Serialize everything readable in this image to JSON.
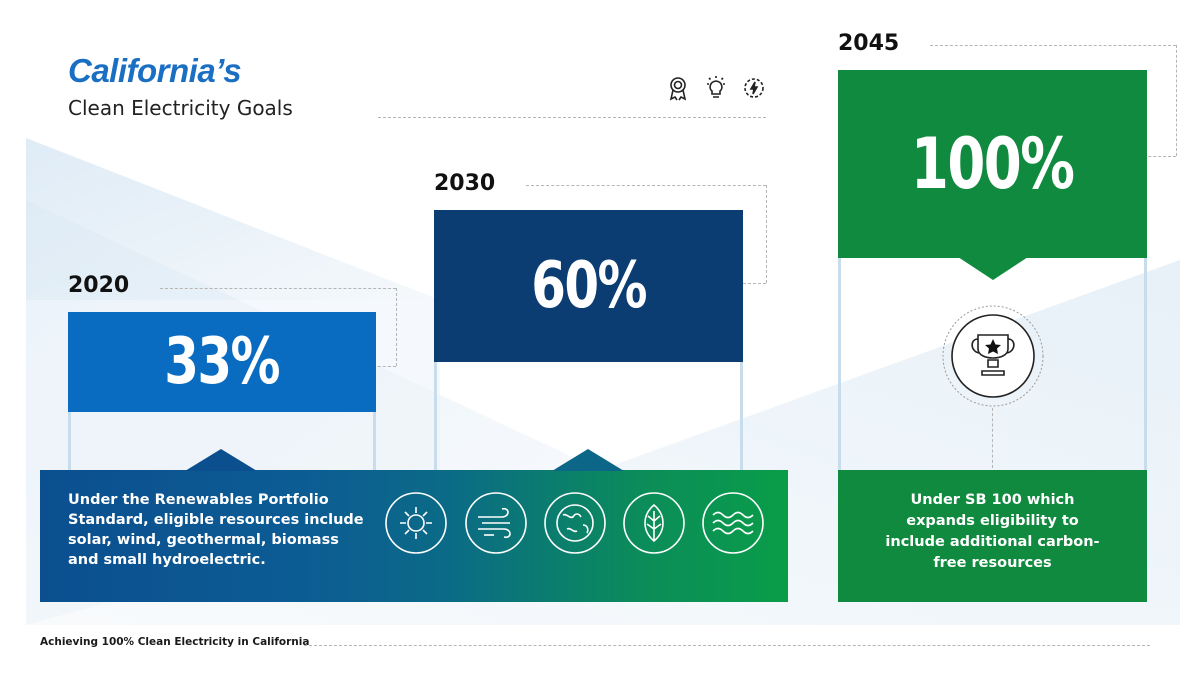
{
  "header": {
    "title": "California’s",
    "subtitle": "Clean Electricity Goals"
  },
  "top_icons": [
    "award-ribbon-icon",
    "lightbulb-icon",
    "energy-gear-icon"
  ],
  "milestones": [
    {
      "year": "2020",
      "value": "33%",
      "color": "#0a6cc0"
    },
    {
      "year": "2030",
      "value": "60%",
      "color": "#0b3d72"
    },
    {
      "year": "2045",
      "value": "100%",
      "color": "#0f8a3e"
    }
  ],
  "rps_panel": {
    "text": "Under the Renewables Portfolio Standard, eligible resources include solar, wind, geothermal, biomass and small hydroelectric.",
    "icons": [
      "sun-icon",
      "wind-icon",
      "globe-icon",
      "leaf-icon",
      "water-waves-icon"
    ]
  },
  "sb100_panel": {
    "text": "Under SB 100 which expands eligibility to include additional carbon-free resources",
    "icon": "trophy-star-icon"
  },
  "footer": {
    "text": "Achieving 100% Clean Electricity in California"
  },
  "colors": {
    "blue_light": "#0a6cc0",
    "blue_dark": "#0b3d72",
    "green": "#0f8a3e",
    "title_blue": "#1b6fc3"
  }
}
